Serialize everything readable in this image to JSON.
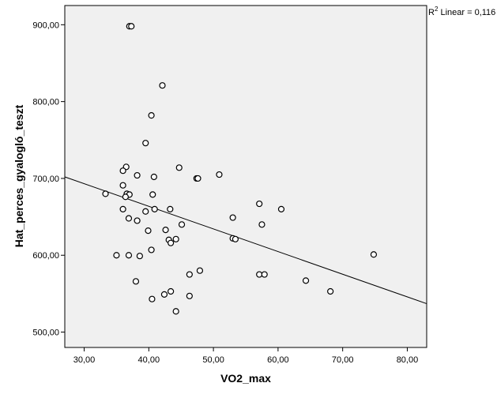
{
  "chart_data": {
    "type": "scatter",
    "title": "",
    "xlabel": "VO2_max",
    "ylabel": "Hat_perces_gyalogló_teszt",
    "xlim": [
      27.0,
      83.0
    ],
    "ylim": [
      480.0,
      925.0
    ],
    "xticks": [
      30,
      40,
      50,
      60,
      70,
      80
    ],
    "yticks": [
      500,
      600,
      700,
      800,
      900
    ],
    "xtick_labels": [
      "30,00",
      "40,00",
      "50,00",
      "60,00",
      "70,00",
      "80,00"
    ],
    "ytick_labels": [
      "500,00",
      "600,00",
      "700,00",
      "800,00",
      "900,00"
    ],
    "grid": false,
    "fit_line": {
      "label_prefix": "R",
      "label_sup": "2",
      "label_rest": " Linear = 0,116",
      "start": [
        27.0,
        702.0
      ],
      "end": [
        83.0,
        537.0
      ]
    },
    "colors": {
      "plot_bg": "#f0f0f0",
      "marker_stroke": "#000000",
      "marker_fill": "#ffffff",
      "line": "#000000"
    },
    "points": [
      {
        "x": 37.0,
        "y": 898
      },
      {
        "x": 37.3,
        "y": 898
      },
      {
        "x": 42.1,
        "y": 821
      },
      {
        "x": 40.4,
        "y": 782
      },
      {
        "x": 39.5,
        "y": 746
      },
      {
        "x": 36.5,
        "y": 715
      },
      {
        "x": 36.0,
        "y": 710
      },
      {
        "x": 44.7,
        "y": 714
      },
      {
        "x": 50.9,
        "y": 705
      },
      {
        "x": 47.4,
        "y": 700
      },
      {
        "x": 47.6,
        "y": 700
      },
      {
        "x": 38.2,
        "y": 704
      },
      {
        "x": 40.8,
        "y": 702
      },
      {
        "x": 36.0,
        "y": 691
      },
      {
        "x": 33.3,
        "y": 680
      },
      {
        "x": 36.6,
        "y": 680
      },
      {
        "x": 37.0,
        "y": 679
      },
      {
        "x": 36.4,
        "y": 676
      },
      {
        "x": 40.6,
        "y": 679
      },
      {
        "x": 57.1,
        "y": 667
      },
      {
        "x": 60.5,
        "y": 660
      },
      {
        "x": 36.0,
        "y": 660
      },
      {
        "x": 39.5,
        "y": 657
      },
      {
        "x": 40.9,
        "y": 660
      },
      {
        "x": 43.3,
        "y": 660
      },
      {
        "x": 36.9,
        "y": 648
      },
      {
        "x": 38.2,
        "y": 645
      },
      {
        "x": 53.0,
        "y": 649
      },
      {
        "x": 45.1,
        "y": 640
      },
      {
        "x": 57.5,
        "y": 640
      },
      {
        "x": 39.9,
        "y": 632
      },
      {
        "x": 42.6,
        "y": 633
      },
      {
        "x": 44.2,
        "y": 621
      },
      {
        "x": 43.1,
        "y": 620
      },
      {
        "x": 43.4,
        "y": 616
      },
      {
        "x": 53.0,
        "y": 622
      },
      {
        "x": 53.4,
        "y": 621
      },
      {
        "x": 40.4,
        "y": 607
      },
      {
        "x": 35.0,
        "y": 600
      },
      {
        "x": 36.9,
        "y": 600
      },
      {
        "x": 38.6,
        "y": 599
      },
      {
        "x": 74.8,
        "y": 601
      },
      {
        "x": 46.3,
        "y": 575
      },
      {
        "x": 47.9,
        "y": 580
      },
      {
        "x": 57.1,
        "y": 575
      },
      {
        "x": 57.9,
        "y": 575
      },
      {
        "x": 38.0,
        "y": 566
      },
      {
        "x": 64.3,
        "y": 567
      },
      {
        "x": 68.1,
        "y": 553
      },
      {
        "x": 42.4,
        "y": 549
      },
      {
        "x": 43.4,
        "y": 553
      },
      {
        "x": 40.5,
        "y": 543
      },
      {
        "x": 46.3,
        "y": 547
      },
      {
        "x": 44.2,
        "y": 527
      }
    ]
  }
}
